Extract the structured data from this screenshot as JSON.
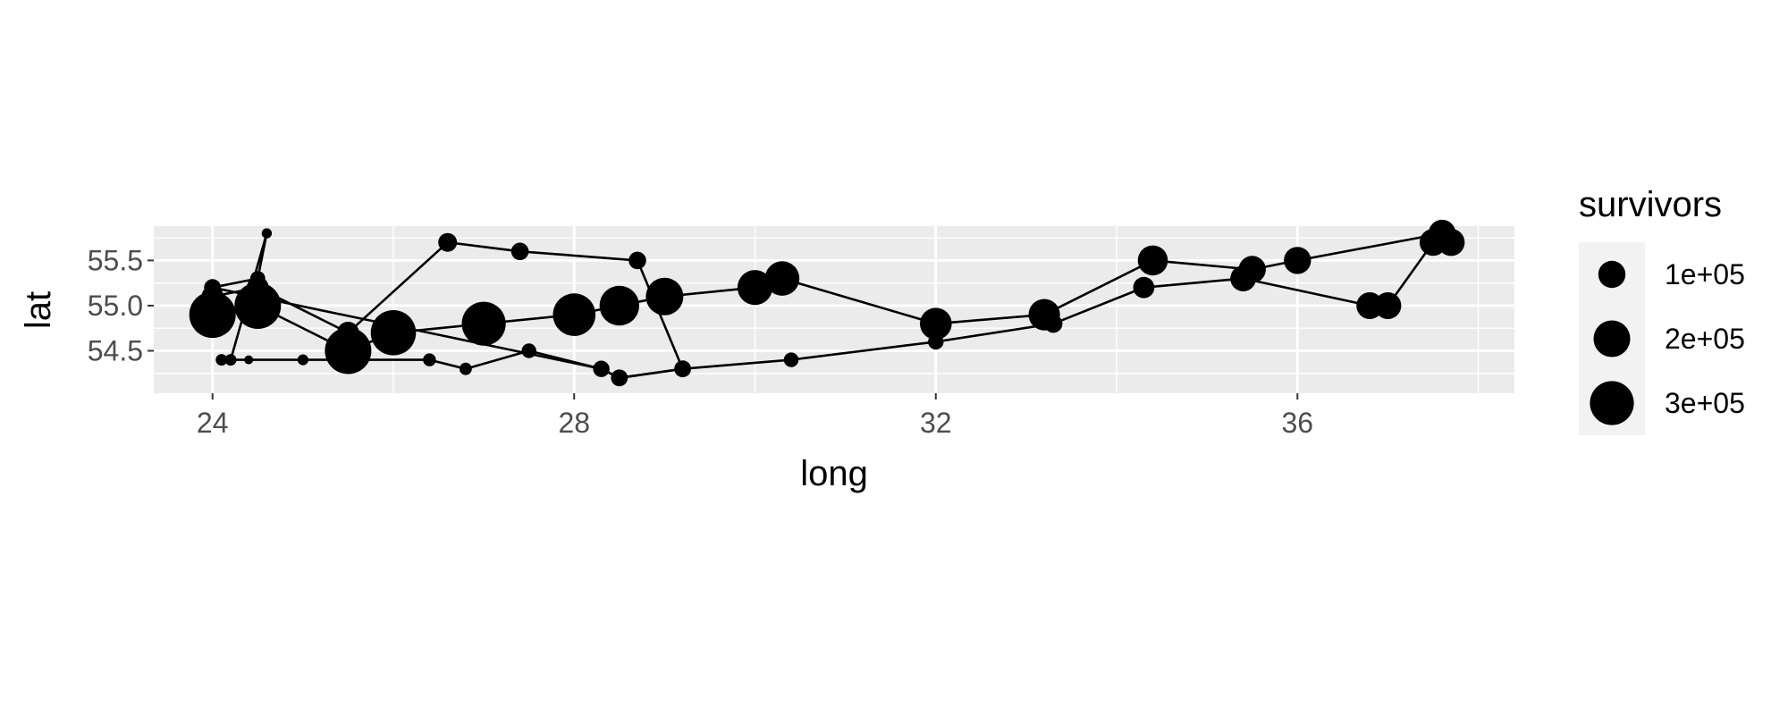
{
  "chart_data": {
    "type": "scatter",
    "xlabel": "long",
    "ylabel": "lat",
    "xlim": [
      23.35,
      38.4
    ],
    "ylim": [
      54.03,
      55.88
    ],
    "x_ticks": [
      24,
      28,
      32,
      36
    ],
    "x_tick_labels": [
      "24",
      "28",
      "32",
      "36"
    ],
    "y_ticks": [
      54.5,
      55.0,
      55.5
    ],
    "y_tick_labels": [
      "54.5",
      "55.0",
      "55.5"
    ],
    "grid": true,
    "legend": {
      "title": "survivors",
      "placement": "right",
      "entries": [
        {
          "label": "1e+05",
          "value": 100000
        },
        {
          "label": "2e+05",
          "value": 200000
        },
        {
          "label": "3e+05",
          "value": 300000
        }
      ]
    },
    "colors": {
      "panel": "#ebebeb",
      "grid": "#ffffff",
      "marks": "#000000",
      "legend_key": "#f2f2f2"
    },
    "size_scale": {
      "min_value": 4000,
      "max_value": 340000
    },
    "series": [
      {
        "group": 1,
        "points": [
          {
            "long": 24.0,
            "lat": 54.9,
            "survivors": 340000
          },
          {
            "long": 24.5,
            "lat": 55.0,
            "survivors": 340000
          },
          {
            "long": 25.5,
            "lat": 54.5,
            "survivors": 340000
          },
          {
            "long": 26.0,
            "lat": 54.7,
            "survivors": 320000
          },
          {
            "long": 27.0,
            "lat": 54.8,
            "survivors": 300000
          },
          {
            "long": 28.0,
            "lat": 54.9,
            "survivors": 280000
          },
          {
            "long": 28.5,
            "lat": 55.0,
            "survivors": 240000
          },
          {
            "long": 29.0,
            "lat": 55.1,
            "survivors": 210000
          },
          {
            "long": 30.0,
            "lat": 55.2,
            "survivors": 180000
          },
          {
            "long": 30.3,
            "lat": 55.3,
            "survivors": 175000
          },
          {
            "long": 32.0,
            "lat": 54.8,
            "survivors": 145000
          },
          {
            "long": 33.2,
            "lat": 54.9,
            "survivors": 140000
          },
          {
            "long": 34.4,
            "lat": 55.5,
            "survivors": 127100
          },
          {
            "long": 35.5,
            "lat": 55.4,
            "survivors": 100000
          },
          {
            "long": 36.0,
            "lat": 55.5,
            "survivors": 100000
          },
          {
            "long": 37.6,
            "lat": 55.8,
            "survivors": 100000
          },
          {
            "long": 37.7,
            "lat": 55.7,
            "survivors": 100000
          },
          {
            "long": 37.5,
            "lat": 55.7,
            "survivors": 98000
          },
          {
            "long": 37.0,
            "lat": 55.0,
            "survivors": 97000
          },
          {
            "long": 36.8,
            "lat": 55.0,
            "survivors": 96000
          },
          {
            "long": 35.4,
            "lat": 55.3,
            "survivors": 87000
          },
          {
            "long": 34.3,
            "lat": 55.2,
            "survivors": 55000
          },
          {
            "long": 33.3,
            "lat": 54.8,
            "survivors": 37000
          },
          {
            "long": 32.0,
            "lat": 54.6,
            "survivors": 24000
          },
          {
            "long": 30.4,
            "lat": 54.4,
            "survivors": 20000
          },
          {
            "long": 29.2,
            "lat": 54.3,
            "survivors": 20000
          },
          {
            "long": 28.5,
            "lat": 54.2,
            "survivors": 20000
          },
          {
            "long": 28.3,
            "lat": 54.3,
            "survivors": 20000
          },
          {
            "long": 27.5,
            "lat": 54.5,
            "survivors": 20000
          },
          {
            "long": 26.8,
            "lat": 54.3,
            "survivors": 12000
          },
          {
            "long": 26.4,
            "lat": 54.4,
            "survivors": 14000
          },
          {
            "long": 25.0,
            "lat": 54.4,
            "survivors": 8000
          },
          {
            "long": 24.4,
            "lat": 54.4,
            "survivors": 4000
          },
          {
            "long": 24.2,
            "lat": 54.4,
            "survivors": 10000
          },
          {
            "long": 24.1,
            "lat": 54.4,
            "survivors": 10000
          }
        ]
      },
      {
        "group": 2,
        "points": [
          {
            "long": 24.0,
            "lat": 55.1,
            "survivors": 60000
          },
          {
            "long": 24.5,
            "lat": 55.2,
            "survivors": 60000
          },
          {
            "long": 25.5,
            "lat": 54.7,
            "survivors": 60000
          },
          {
            "long": 26.6,
            "lat": 55.7,
            "survivors": 40000
          },
          {
            "long": 27.4,
            "lat": 55.6,
            "survivors": 33000
          },
          {
            "long": 28.7,
            "lat": 55.5,
            "survivors": 33000
          },
          {
            "long": 29.2,
            "lat": 54.3,
            "survivors": 30000
          },
          {
            "long": 28.5,
            "lat": 54.2,
            "survivors": 30000
          },
          {
            "long": 28.3,
            "lat": 54.3,
            "survivors": 28000
          },
          {
            "long": 24.0,
            "lat": 55.2,
            "survivors": 30000
          }
        ]
      },
      {
        "group": 3,
        "points": [
          {
            "long": 24.0,
            "lat": 55.2,
            "survivors": 22000
          },
          {
            "long": 24.5,
            "lat": 55.3,
            "survivors": 22000
          },
          {
            "long": 24.6,
            "lat": 55.8,
            "survivors": 6000
          },
          {
            "long": 24.6,
            "lat": 55.8,
            "survivors": 6000
          },
          {
            "long": 24.2,
            "lat": 54.4,
            "survivors": 6000
          },
          {
            "long": 24.1,
            "lat": 54.4,
            "survivors": 6000
          }
        ]
      }
    ]
  }
}
